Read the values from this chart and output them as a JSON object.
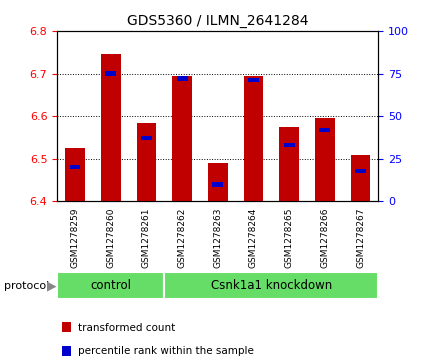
{
  "title": "GDS5360 / ILMN_2641284",
  "samples": [
    "GSM1278259",
    "GSM1278260",
    "GSM1278261",
    "GSM1278262",
    "GSM1278263",
    "GSM1278264",
    "GSM1278265",
    "GSM1278266",
    "GSM1278267"
  ],
  "transformed_count": [
    6.525,
    6.745,
    6.585,
    6.695,
    6.49,
    6.695,
    6.575,
    6.595,
    6.51
  ],
  "percentile_rank": [
    20,
    75,
    37,
    72,
    10,
    71,
    33,
    42,
    18
  ],
  "ylim_left": [
    6.4,
    6.8
  ],
  "ylim_right": [
    0,
    100
  ],
  "yticks_left": [
    6.4,
    6.5,
    6.6,
    6.7,
    6.8
  ],
  "yticks_right": [
    0,
    25,
    50,
    75,
    100
  ],
  "bar_color": "#c00000",
  "blue_color": "#0000cc",
  "control_indices": [
    0,
    1,
    2
  ],
  "knockdown_indices": [
    3,
    4,
    5,
    6,
    7,
    8
  ],
  "control_label": "control",
  "knockdown_label": "Csnk1a1 knockdown",
  "green_color": "#66dd66",
  "protocol_label": "protocol",
  "legend_label_red": "transformed count",
  "legend_label_blue": "percentile rank within the sample",
  "label_area_color": "#d3d3d3",
  "white_color": "#ffffff"
}
